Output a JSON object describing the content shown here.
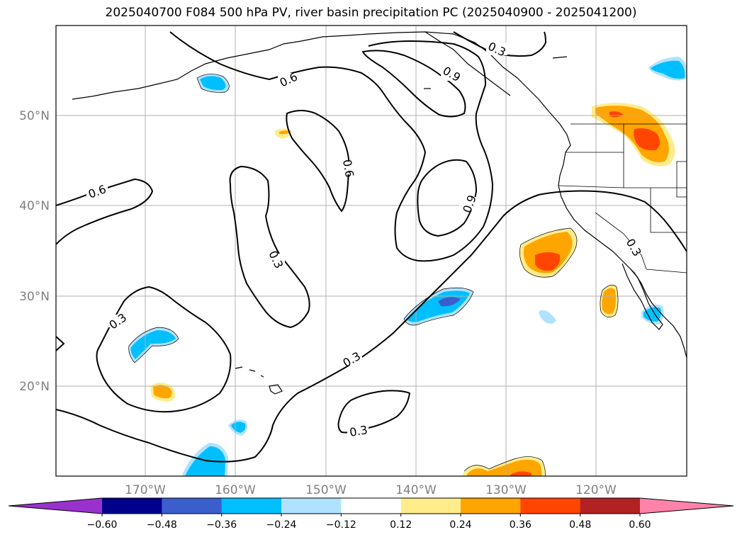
{
  "title": "2025040700 F084 500 hPa PV, river basin precipitation PC (2025040900 - 2025041200)",
  "map": {
    "lon_labels": [
      "170°W",
      "160°W",
      "150°W",
      "140°W",
      "130°W",
      "120°W"
    ],
    "lat_labels": [
      "50°N",
      "40°N",
      "30°N",
      "20°N"
    ],
    "pv_contour_labels": [
      "0.3",
      "0.6",
      "0.9",
      "0.6",
      "0.9",
      "0.6",
      "0.3",
      "0.3",
      "0.3",
      "0.3",
      "0.3"
    ]
  },
  "colorbar": {
    "ticks": [
      "−0.60",
      "−0.48",
      "−0.36",
      "−0.24",
      "−0.12",
      "0.12",
      "0.24",
      "0.36",
      "0.48",
      "0.60"
    ],
    "colors": [
      "#9932cc",
      "#00008b",
      "#3a5fcd",
      "#00bfff",
      "#b0e2ff",
      "#ffffff",
      "#ffec8b",
      "#ffa500",
      "#ff4500",
      "#b22222",
      "#ff82ab"
    ]
  },
  "colors": {
    "pos_light": "#ffec8b",
    "pos_mid": "#ffa500",
    "pos_dark": "#ff4500",
    "neg_light": "#b0e2ff",
    "neg_mid": "#00bfff",
    "neg_dark": "#3a5fcd"
  }
}
